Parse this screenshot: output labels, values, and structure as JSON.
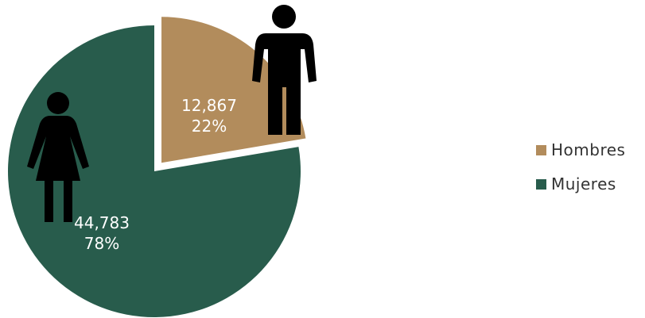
{
  "chart_data": {
    "type": "pie",
    "categories": [
      "Hombres",
      "Mujeres"
    ],
    "values": [
      12867,
      44783
    ],
    "value_labels": [
      "12,867",
      "44,783"
    ],
    "percent_labels": [
      "22%",
      "78%"
    ],
    "colors": [
      "#b28c5c",
      "#285c4c"
    ],
    "exploded": [
      "Hombres"
    ],
    "legend": {
      "position": "right",
      "entries": [
        "Hombres",
        "Mujeres"
      ]
    },
    "title": ""
  },
  "icons": {
    "male": "man-icon",
    "female": "woman-icon"
  }
}
